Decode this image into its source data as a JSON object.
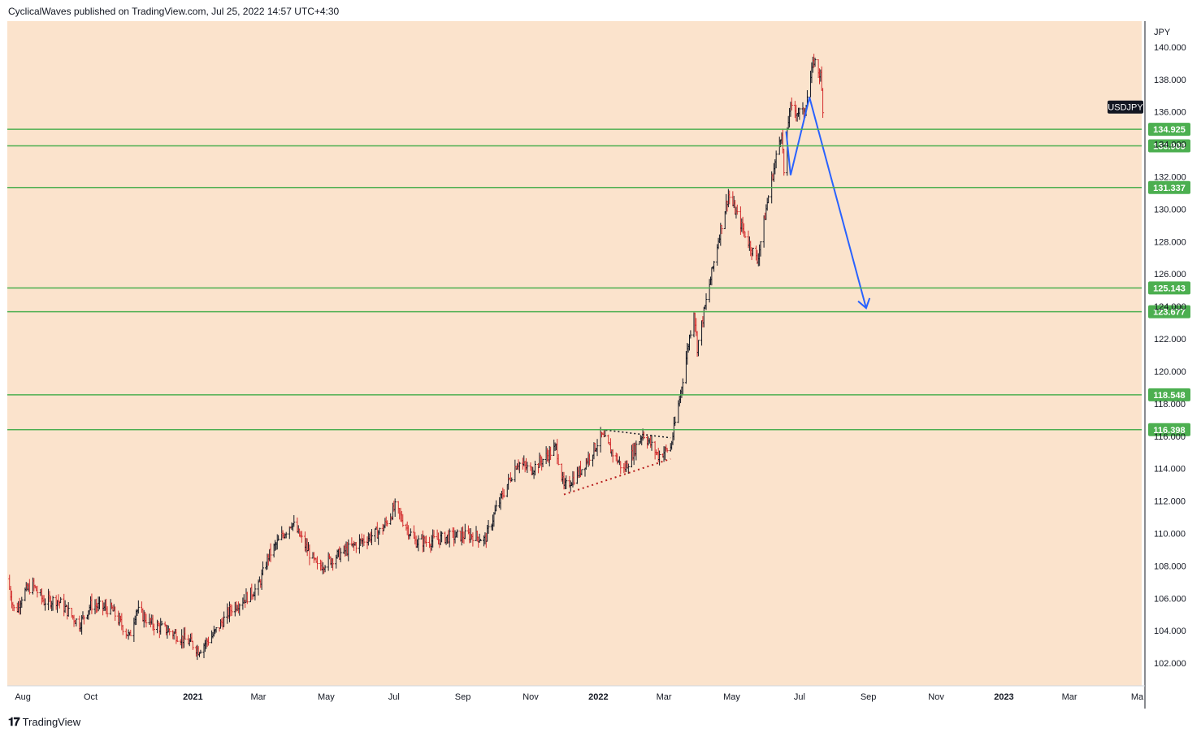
{
  "header": {
    "published_text": "CyclicalWaves published on TradingView.com, Jul 25, 2022 14:57 UTC+4:30"
  },
  "footer": {
    "logo_icon": "tradingview-logo-icon",
    "brand": "TradingView"
  },
  "colors": {
    "plot_bg": "#fbe3cc",
    "up_bar": "#131722",
    "down_bar": "#d32f2f",
    "level_line": "#4caf50",
    "projection": "#2962ff",
    "triangle_upper": "#131722",
    "triangle_lower": "#b71c1c"
  },
  "chart_data": {
    "type": "ohlc",
    "symbol": "USDJPY",
    "currency_label": "JPY",
    "y_ticks": [
      "102.000",
      "104.000",
      "106.000",
      "108.000",
      "110.000",
      "112.000",
      "114.000",
      "116.000",
      "118.000",
      "120.000",
      "122.000",
      "124.000",
      "126.000",
      "128.000",
      "130.000",
      "132.000",
      "134.000",
      "136.000",
      "138.000",
      "140.000"
    ],
    "ylim": [
      100.6,
      141.6
    ],
    "x_ticks": [
      {
        "label": "Aug",
        "date": "2020-08-01",
        "bold": false
      },
      {
        "label": "Oct",
        "date": "2020-10-01",
        "bold": false
      },
      {
        "label": "2021",
        "date": "2021-01-01",
        "bold": true
      },
      {
        "label": "Mar",
        "date": "2021-03-01",
        "bold": false
      },
      {
        "label": "May",
        "date": "2021-05-01",
        "bold": false
      },
      {
        "label": "Jul",
        "date": "2021-07-01",
        "bold": false
      },
      {
        "label": "Sep",
        "date": "2021-09-01",
        "bold": false
      },
      {
        "label": "Nov",
        "date": "2021-11-01",
        "bold": false
      },
      {
        "label": "2022",
        "date": "2022-01-01",
        "bold": true
      },
      {
        "label": "Mar",
        "date": "2022-03-01",
        "bold": false
      },
      {
        "label": "May",
        "date": "2022-05-01",
        "bold": false
      },
      {
        "label": "Jul",
        "date": "2022-07-01",
        "bold": false
      },
      {
        "label": "Sep",
        "date": "2022-09-01",
        "bold": false
      },
      {
        "label": "Nov",
        "date": "2022-11-01",
        "bold": false
      },
      {
        "label": "2023",
        "date": "2023-01-01",
        "bold": true
      },
      {
        "label": "Mar",
        "date": "2023-03-01",
        "bold": false
      },
      {
        "label": "Ma",
        "date": "2023-05-01",
        "bold": false
      }
    ],
    "xlim": [
      "2020-07-18",
      "2023-05-05"
    ],
    "last_price_label": "USDJPY",
    "last_price": 136.3,
    "levels": [
      "134.925",
      "133.909",
      "131.337",
      "125.143",
      "123.677",
      "118.548",
      "116.398"
    ],
    "price_path": [
      [
        "2020-07-18",
        107.2
      ],
      [
        "2020-07-25",
        105.0
      ],
      [
        "2020-08-01",
        106.3
      ],
      [
        "2020-08-10",
        106.8
      ],
      [
        "2020-08-20",
        105.8
      ],
      [
        "2020-09-01",
        105.9
      ],
      [
        "2020-09-21",
        104.4
      ],
      [
        "2020-10-01",
        105.6
      ],
      [
        "2020-10-20",
        105.3
      ],
      [
        "2020-11-05",
        103.6
      ],
      [
        "2020-11-11",
        105.3
      ],
      [
        "2020-11-25",
        104.4
      ],
      [
        "2020-12-10",
        104.0
      ],
      [
        "2020-12-31",
        103.2
      ],
      [
        "2021-01-06",
        102.8
      ],
      [
        "2021-01-20",
        103.8
      ],
      [
        "2021-02-05",
        105.4
      ],
      [
        "2021-02-17",
        106.0
      ],
      [
        "2021-03-01",
        106.7
      ],
      [
        "2021-03-10",
        108.6
      ],
      [
        "2021-03-31",
        110.7
      ],
      [
        "2021-04-10",
        109.5
      ],
      [
        "2021-04-23",
        107.9
      ],
      [
        "2021-05-10",
        108.6
      ],
      [
        "2021-05-20",
        109.0
      ],
      [
        "2021-06-01",
        109.5
      ],
      [
        "2021-06-20",
        110.2
      ],
      [
        "2021-07-02",
        111.6
      ],
      [
        "2021-07-20",
        109.5
      ],
      [
        "2021-08-01",
        109.5
      ],
      [
        "2021-08-20",
        109.8
      ],
      [
        "2021-09-10",
        109.9
      ],
      [
        "2021-09-21",
        109.6
      ],
      [
        "2021-10-01",
        111.5
      ],
      [
        "2021-10-20",
        114.4
      ],
      [
        "2021-11-01",
        113.9
      ],
      [
        "2021-11-24",
        115.3
      ],
      [
        "2021-12-01",
        112.8
      ],
      [
        "2021-12-15",
        113.8
      ],
      [
        "2022-01-04",
        116.0
      ],
      [
        "2022-01-24",
        113.9
      ],
      [
        "2022-02-10",
        116.2
      ],
      [
        "2022-02-24",
        114.8
      ],
      [
        "2022-03-07",
        115.3
      ],
      [
        "2022-03-15",
        118.3
      ],
      [
        "2022-03-28",
        123.8
      ],
      [
        "2022-03-31",
        121.5
      ],
      [
        "2022-04-20",
        128.5
      ],
      [
        "2022-04-28",
        130.9
      ],
      [
        "2022-05-12",
        128.6
      ],
      [
        "2022-05-24",
        126.8
      ],
      [
        "2022-06-03",
        130.8
      ],
      [
        "2022-06-15",
        134.9
      ],
      [
        "2022-06-17",
        132.2
      ],
      [
        "2022-06-22",
        136.2
      ],
      [
        "2022-07-05",
        135.9
      ],
      [
        "2022-07-14",
        139.2
      ],
      [
        "2022-07-20",
        138.2
      ],
      [
        "2022-07-22",
        136.3
      ]
    ],
    "annotations": {
      "triangle_upper": [
        [
          "2022-01-04",
          116.4
        ],
        [
          "2022-03-07",
          115.9
        ]
      ],
      "triangle_lower": [
        [
          "2021-12-01",
          112.4
        ],
        [
          "2022-03-07",
          114.6
        ]
      ],
      "projection_path": [
        [
          "2022-06-19",
          134.8
        ],
        [
          "2022-06-23",
          132.1
        ],
        [
          "2022-07-10",
          136.9
        ],
        [
          "2022-08-30",
          123.9
        ]
      ]
    }
  }
}
